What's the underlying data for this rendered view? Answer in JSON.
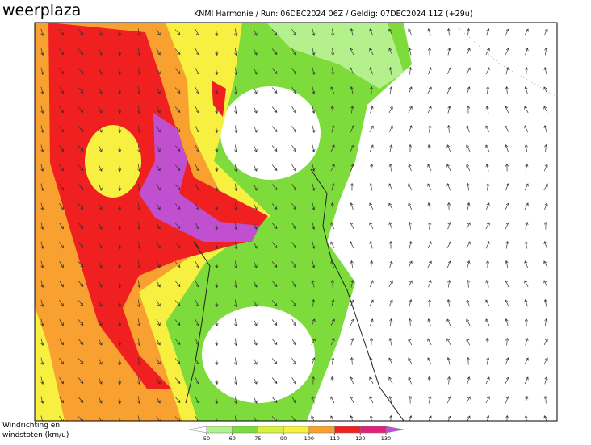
{
  "header": {
    "logo": "weerplaza",
    "info": "KNMI Harmonie  /  Run: 06DEC2024 06Z  /  Geldig: 07DEC2024 11Z (+29u)"
  },
  "legend": {
    "label_line1": "Windrichting en",
    "label_line2": "windstoten (km/u)",
    "ticks": [
      50,
      60,
      75,
      90,
      100,
      110,
      120,
      130
    ],
    "colors": [
      "#ffffff",
      "#b4f08c",
      "#7ddc3c",
      "#d8f040",
      "#f8f040",
      "#f8a030",
      "#f02020",
      "#e0207a",
      "#c050d0"
    ]
  }
}
